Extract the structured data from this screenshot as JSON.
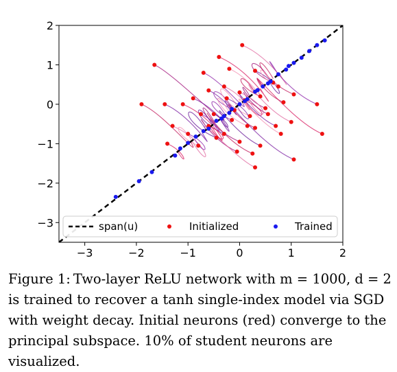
{
  "chart_data": {
    "type": "scatter",
    "xlim": [
      -3.5,
      2
    ],
    "ylim": [
      -3.5,
      2
    ],
    "x_ticks": [
      -3,
      -2,
      -1,
      0,
      1,
      2
    ],
    "y_ticks": [
      -3,
      -2,
      -1,
      0,
      1,
      2
    ],
    "x_tick_labels": [
      "−3",
      "−2",
      "−1",
      "0",
      "1",
      "2"
    ],
    "y_tick_labels": [
      "−3",
      "−2",
      "−1",
      "0",
      "1",
      "2"
    ],
    "legend_position": "bottom",
    "colors": {
      "initialized": "#ee1111",
      "trained": "#1a1aee",
      "span": "#000000"
    },
    "series": [
      {
        "name": "span(u)",
        "style": "dashed-line",
        "points": [
          [
            -3.5,
            -3.5
          ],
          [
            2,
            2
          ]
        ]
      },
      {
        "name": "Initialized",
        "style": "dots",
        "points": [
          [
            -1.65,
            1.0
          ],
          [
            -1.9,
            0.0
          ],
          [
            -1.45,
            0.0
          ],
          [
            0.05,
            1.5
          ],
          [
            -0.4,
            1.2
          ],
          [
            -0.7,
            0.8
          ],
          [
            -0.2,
            0.9
          ],
          [
            0.3,
            0.85
          ],
          [
            0.65,
            0.55
          ],
          [
            1.05,
            0.25
          ],
          [
            -0.6,
            0.35
          ],
          [
            -0.3,
            0.45
          ],
          [
            0.1,
            0.1
          ],
          [
            -0.1,
            -0.15
          ],
          [
            0.2,
            -0.3
          ],
          [
            -0.5,
            -0.25
          ],
          [
            0.5,
            -0.1
          ],
          [
            0.4,
            0.2
          ],
          [
            -0.9,
            0.15
          ],
          [
            -1.3,
            -0.55
          ],
          [
            -1.4,
            -1.0
          ],
          [
            -1.0,
            -0.75
          ],
          [
            -0.8,
            -1.05
          ],
          [
            -0.3,
            -0.75
          ],
          [
            0.0,
            -0.95
          ],
          [
            0.3,
            -0.6
          ],
          [
            0.7,
            -0.55
          ],
          [
            1.0,
            -0.45
          ],
          [
            1.6,
            -0.75
          ],
          [
            1.5,
            0.0
          ],
          [
            0.8,
            -0.75
          ],
          [
            0.4,
            -1.05
          ],
          [
            -0.05,
            -1.2
          ],
          [
            0.25,
            -1.25
          ],
          [
            1.05,
            -1.4
          ],
          [
            0.3,
            -1.6
          ],
          [
            -0.6,
            -0.55
          ],
          [
            -0.15,
            -0.4
          ],
          [
            0.15,
            -0.55
          ],
          [
            -0.45,
            -0.85
          ],
          [
            0.55,
            -0.25
          ],
          [
            0.85,
            0.05
          ],
          [
            -0.25,
            0.15
          ],
          [
            0.0,
            0.3
          ],
          [
            -1.1,
            0.0
          ],
          [
            -0.75,
            -0.25
          ],
          [
            0.75,
            0.45
          ]
        ]
      },
      {
        "name": "Trained",
        "style": "dots",
        "points": [
          [
            -2.4,
            -2.35
          ],
          [
            -1.95,
            -1.95
          ],
          [
            -1.7,
            -1.72
          ],
          [
            -1.25,
            -1.3
          ],
          [
            -1.0,
            -0.98
          ],
          [
            -0.85,
            -0.82
          ],
          [
            -0.6,
            -0.62
          ],
          [
            -0.45,
            -0.42
          ],
          [
            -0.3,
            -0.3
          ],
          [
            -0.15,
            -0.12
          ],
          [
            0.0,
            0.0
          ],
          [
            0.15,
            0.13
          ],
          [
            0.3,
            0.32
          ],
          [
            0.45,
            0.45
          ],
          [
            0.6,
            0.58
          ],
          [
            0.75,
            0.76
          ],
          [
            0.9,
            0.88
          ],
          [
            1.05,
            1.05
          ],
          [
            1.2,
            1.18
          ],
          [
            1.35,
            1.35
          ],
          [
            1.5,
            1.5
          ],
          [
            1.65,
            1.62
          ],
          [
            -0.7,
            -0.68
          ],
          [
            -0.2,
            -0.22
          ],
          [
            0.35,
            0.36
          ],
          [
            0.95,
            0.97
          ],
          [
            -1.15,
            -1.12
          ],
          [
            0.1,
            0.08
          ],
          [
            -0.35,
            -0.36
          ],
          [
            0.55,
            0.53
          ]
        ]
      }
    ],
    "legend": [
      {
        "label": "span(u)",
        "marker": "dashed-line"
      },
      {
        "label": "Initialized",
        "marker": "dot",
        "color": "#ee1111"
      },
      {
        "label": "Trained",
        "marker": "dot",
        "color": "#1a1aee"
      }
    ]
  },
  "caption": {
    "label": "Figure 1:",
    "text": "Two-layer ReLU network with m = 1000, d = 2 is trained to recover a tanh single-index model via SGD with weight decay. Initial neurons (red) converge to the principal subspace. 10% of student neurons are visualized."
  }
}
